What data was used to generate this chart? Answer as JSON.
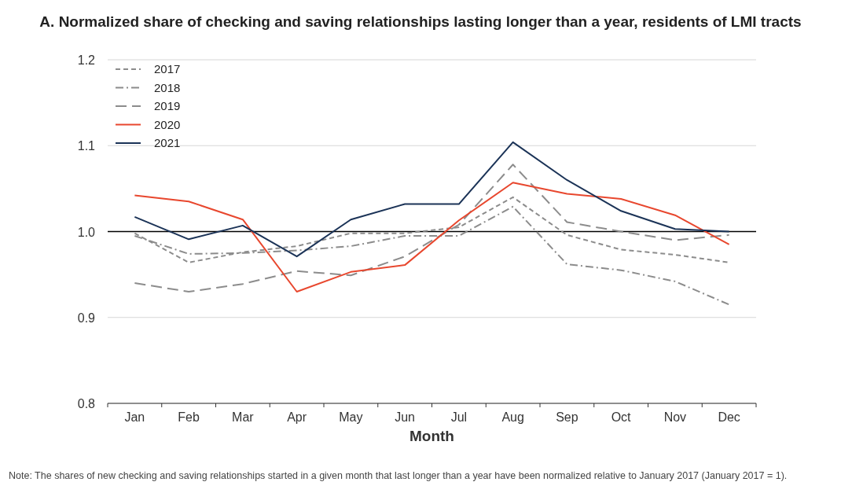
{
  "chart_data": {
    "type": "line",
    "title": "A. Normalized share of checking and saving relationships lasting longer than a year, residents of LMI tracts",
    "xlabel": "Month",
    "categories": [
      "Jan",
      "Feb",
      "Mar",
      "Apr",
      "May",
      "Jun",
      "Jul",
      "Aug",
      "Sep",
      "Oct",
      "Nov",
      "Dec"
    ],
    "series": [
      {
        "name": "2017",
        "color": "#8c8c8c",
        "line_style": "dashed",
        "values": [
          0.998,
          0.964,
          0.976,
          0.983,
          0.998,
          0.998,
          1.005,
          1.04,
          0.996,
          0.979,
          0.973,
          0.964
        ]
      },
      {
        "name": "2018",
        "color": "#8c8c8c",
        "line_style": "dashdot",
        "values": [
          0.995,
          0.974,
          0.975,
          0.978,
          0.983,
          0.995,
          0.995,
          1.029,
          0.962,
          0.955,
          0.942,
          0.915
        ]
      },
      {
        "name": "2019",
        "color": "#8c8c8c",
        "line_style": "longdash",
        "values": [
          0.94,
          0.93,
          0.939,
          0.954,
          0.949,
          0.971,
          1.008,
          1.078,
          1.011,
          1.0,
          0.99,
          0.996
        ]
      },
      {
        "name": "2020",
        "color": "#e8472e",
        "line_style": "solid",
        "values": [
          1.042,
          1.035,
          1.014,
          0.93,
          0.953,
          0.961,
          1.013,
          1.057,
          1.044,
          1.038,
          1.019,
          0.985
        ]
      },
      {
        "name": "2021",
        "color": "#1b3357",
        "line_style": "solid",
        "values": [
          1.017,
          0.991,
          1.007,
          0.971,
          1.014,
          1.032,
          1.032,
          1.104,
          1.06,
          1.024,
          1.003,
          1.0
        ]
      }
    ],
    "ylim": [
      0.8,
      1.2
    ],
    "yticks": [
      {
        "value": 0.8,
        "label": "0.8"
      },
      {
        "value": 0.9,
        "label": "0.9"
      },
      {
        "value": 1.0,
        "label": "1.0"
      },
      {
        "value": 1.1,
        "label": "1.1"
      },
      {
        "value": 1.2,
        "label": "1.2"
      }
    ],
    "grid": "y",
    "legend": "top left",
    "ref_lines": [
      {
        "axis": "y",
        "value": 1.0,
        "color": "#000000"
      }
    ],
    "annotations": [
      "Note: The shares of new checking and saving relationships started in a given month that last longer than a year have been normalized relative to January 2017 (January 2017 = 1)."
    ]
  }
}
